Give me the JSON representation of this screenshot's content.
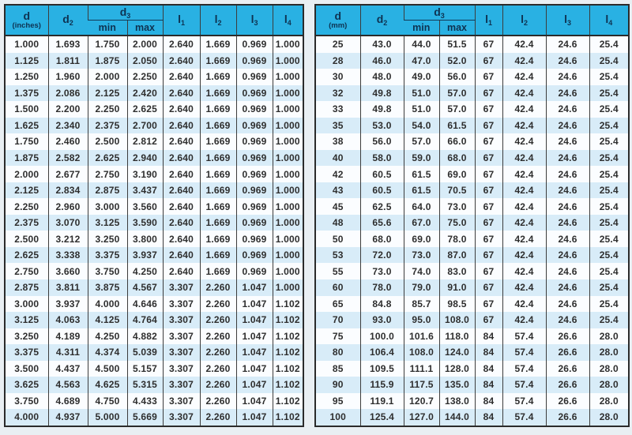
{
  "colors": {
    "header_bg": "#29b1e3",
    "header_text": "#0e3251",
    "row_odd": "#fbfdff",
    "row_even": "#d8ecf8",
    "border_dark": "#2b2b2b",
    "body_text": "#2e2e2e",
    "page_bg": "#e9eff3"
  },
  "tables": [
    {
      "name": "dimensions-inches-table",
      "head": {
        "d_base": "d",
        "d_unit": "(inches)",
        "d2_base": "d",
        "d2_sub": "2",
        "d3_base": "d",
        "d3_sub": "3",
        "min": "min",
        "max": "max",
        "l1_base": "l",
        "l1_sub": "1",
        "l2_base": "l",
        "l2_sub": "2",
        "l3_base": "l",
        "l3_sub": "3",
        "l4_base": "l",
        "l4_sub": "4"
      },
      "rows": [
        [
          "1.000",
          "1.693",
          "1.750",
          "2.000",
          "2.640",
          "1.669",
          "0.969",
          "1.000"
        ],
        [
          "1.125",
          "1.811",
          "1.875",
          "2.050",
          "2.640",
          "1.669",
          "0.969",
          "1.000"
        ],
        [
          "1.250",
          "1.960",
          "2.000",
          "2.250",
          "2.640",
          "1.669",
          "0.969",
          "1.000"
        ],
        [
          "1.375",
          "2.086",
          "2.125",
          "2.420",
          "2.640",
          "1.669",
          "0.969",
          "1.000"
        ],
        [
          "1.500",
          "2.200",
          "2.250",
          "2.625",
          "2.640",
          "1.669",
          "0.969",
          "1.000"
        ],
        [
          "1.625",
          "2.340",
          "2.375",
          "2.700",
          "2.640",
          "1.669",
          "0.969",
          "1.000"
        ],
        [
          "1.750",
          "2.460",
          "2.500",
          "2.812",
          "2.640",
          "1.669",
          "0.969",
          "1.000"
        ],
        [
          "1.875",
          "2.582",
          "2.625",
          "2.940",
          "2.640",
          "1.669",
          "0.969",
          "1.000"
        ],
        [
          "2.000",
          "2.677",
          "2.750",
          "3.190",
          "2.640",
          "1.669",
          "0.969",
          "1.000"
        ],
        [
          "2.125",
          "2.834",
          "2.875",
          "3.437",
          "2.640",
          "1.669",
          "0.969",
          "1.000"
        ],
        [
          "2.250",
          "2.960",
          "3.000",
          "3.560",
          "2.640",
          "1.669",
          "0.969",
          "1.000"
        ],
        [
          "2.375",
          "3.070",
          "3.125",
          "3.590",
          "2.640",
          "1.669",
          "0.969",
          "1.000"
        ],
        [
          "2.500",
          "3.212",
          "3.250",
          "3.800",
          "2.640",
          "1.669",
          "0.969",
          "1.000"
        ],
        [
          "2.625",
          "3.338",
          "3.375",
          "3.937",
          "2.640",
          "1.669",
          "0.969",
          "1.000"
        ],
        [
          "2.750",
          "3.660",
          "3.750",
          "4.250",
          "2.640",
          "1.669",
          "0.969",
          "1.000"
        ],
        [
          "2.875",
          "3.811",
          "3.875",
          "4.567",
          "3.307",
          "2.260",
          "1.047",
          "1.000"
        ],
        [
          "3.000",
          "3.937",
          "4.000",
          "4.646",
          "3.307",
          "2.260",
          "1.047",
          "1.102"
        ],
        [
          "3.125",
          "4.063",
          "4.125",
          "4.764",
          "3.307",
          "2.260",
          "1.047",
          "1.102"
        ],
        [
          "3.250",
          "4.189",
          "4.250",
          "4.882",
          "3.307",
          "2.260",
          "1.047",
          "1.102"
        ],
        [
          "3.375",
          "4.311",
          "4.374",
          "5.039",
          "3.307",
          "2.260",
          "1.047",
          "1.102"
        ],
        [
          "3.500",
          "4.437",
          "4.500",
          "5.157",
          "3.307",
          "2.260",
          "1.047",
          "1.102"
        ],
        [
          "3.625",
          "4.563",
          "4.625",
          "5.315",
          "3.307",
          "2.260",
          "1.047",
          "1.102"
        ],
        [
          "3.750",
          "4.689",
          "4.750",
          "4.433",
          "3.307",
          "2.260",
          "1.047",
          "1.102"
        ],
        [
          "4.000",
          "4.937",
          "5.000",
          "5.669",
          "3.307",
          "2.260",
          "1.047",
          "1.102"
        ]
      ]
    },
    {
      "name": "dimensions-mm-table",
      "head": {
        "d_base": "d",
        "d_unit": "(mm)",
        "d2_base": "d",
        "d2_sub": "2",
        "d3_base": "d",
        "d3_sub": "3",
        "min": "min",
        "max": "max",
        "l1_base": "l",
        "l1_sub": "1",
        "l2_base": "l",
        "l2_sub": "2",
        "l3_base": "l",
        "l3_sub": "3",
        "l4_base": "l",
        "l4_sub": "4"
      },
      "rows": [
        [
          "25",
          "43.0",
          "44.0",
          "51.5",
          "67",
          "42.4",
          "24.6",
          "25.4"
        ],
        [
          "28",
          "46.0",
          "47.0",
          "52.0",
          "67",
          "42.4",
          "24.6",
          "25.4"
        ],
        [
          "30",
          "48.0",
          "49.0",
          "56.0",
          "67",
          "42.4",
          "24.6",
          "25.4"
        ],
        [
          "32",
          "49.8",
          "51.0",
          "57.0",
          "67",
          "42.4",
          "24.6",
          "25.4"
        ],
        [
          "33",
          "49.8",
          "51.0",
          "57.0",
          "67",
          "42.4",
          "24.6",
          "25.4"
        ],
        [
          "35",
          "53.0",
          "54.0",
          "61.5",
          "67",
          "42.4",
          "24.6",
          "25.4"
        ],
        [
          "38",
          "56.0",
          "57.0",
          "66.0",
          "67",
          "42.4",
          "24.6",
          "25.4"
        ],
        [
          "40",
          "58.0",
          "59.0",
          "68.0",
          "67",
          "42.4",
          "24.6",
          "25.4"
        ],
        [
          "42",
          "60.5",
          "61.5",
          "69.0",
          "67",
          "42.4",
          "24.6",
          "25.4"
        ],
        [
          "43",
          "60.5",
          "61.5",
          "70.5",
          "67",
          "42.4",
          "24.6",
          "25.4"
        ],
        [
          "45",
          "62.5",
          "64.0",
          "73.0",
          "67",
          "42.4",
          "24.6",
          "25.4"
        ],
        [
          "48",
          "65.6",
          "67.0",
          "75.0",
          "67",
          "42.4",
          "24.6",
          "25.4"
        ],
        [
          "50",
          "68.0",
          "69.0",
          "78.0",
          "67",
          "42.4",
          "24.6",
          "25.4"
        ],
        [
          "53",
          "72.0",
          "73.0",
          "87.0",
          "67",
          "42.4",
          "24.6",
          "25.4"
        ],
        [
          "55",
          "73.0",
          "74.0",
          "83.0",
          "67",
          "42.4",
          "24.6",
          "25.4"
        ],
        [
          "60",
          "78.0",
          "79.0",
          "91.0",
          "67",
          "42.4",
          "24.6",
          "25.4"
        ],
        [
          "65",
          "84.8",
          "85.7",
          "98.5",
          "67",
          "42.4",
          "24.6",
          "25.4"
        ],
        [
          "70",
          "93.0",
          "95.0",
          "108.0",
          "67",
          "42.4",
          "24.6",
          "25.4"
        ],
        [
          "75",
          "100.0",
          "101.6",
          "118.0",
          "84",
          "57.4",
          "26.6",
          "28.0"
        ],
        [
          "80",
          "106.4",
          "108.0",
          "124.0",
          "84",
          "57.4",
          "26.6",
          "28.0"
        ],
        [
          "85",
          "109.5",
          "111.1",
          "128.0",
          "84",
          "57.4",
          "26.6",
          "28.0"
        ],
        [
          "90",
          "115.9",
          "117.5",
          "135.0",
          "84",
          "57.4",
          "26.6",
          "28.0"
        ],
        [
          "95",
          "119.1",
          "120.7",
          "138.0",
          "84",
          "57.4",
          "26.6",
          "28.0"
        ],
        [
          "100",
          "125.4",
          "127.0",
          "144.0",
          "84",
          "57.4",
          "26.6",
          "28.0"
        ]
      ]
    }
  ]
}
